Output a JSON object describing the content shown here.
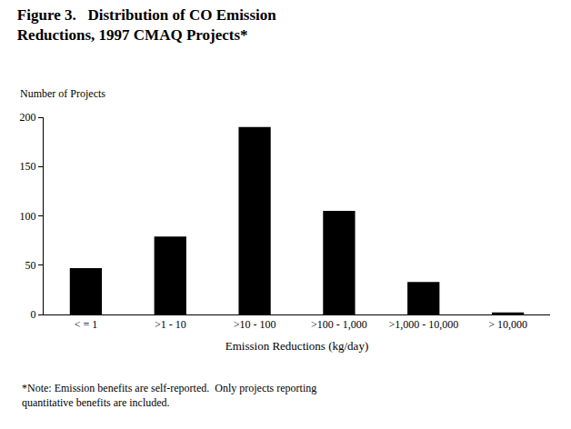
{
  "chart_data": {
    "type": "bar",
    "title": [
      "Figure 3.   Distribution of CO Emission",
      "Reductions, 1997 CMAQ Projects*"
    ],
    "ylabel": "Number of Projects",
    "xlabel": "Emission Reductions (kg/day)",
    "note": [
      "*Note: Emission benefits are self-reported.  Only projects reporting",
      "quantitative benefits are included."
    ],
    "categories": [
      "< = 1",
      ">1 - 10",
      ">10 - 100",
      ">100 - 1,000",
      ">1,000 - 10,000",
      "> 10,000"
    ],
    "values": [
      47,
      79,
      190,
      105,
      33,
      2
    ],
    "color": "#000000",
    "ylim": [
      0,
      200
    ],
    "yticks": [
      0,
      50,
      100,
      150,
      200
    ],
    "grid": false
  }
}
